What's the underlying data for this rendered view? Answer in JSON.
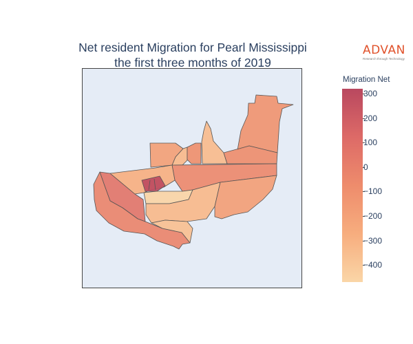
{
  "title": {
    "line1": "Net resident Migration for Pearl Mississippi",
    "line2": "the first three months of 2019"
  },
  "logo": {
    "name": "ADVAN",
    "tagline": "Research through Technology",
    "color": "#e0512a"
  },
  "colorbar": {
    "title": "Migration Net",
    "ticks": [
      "300",
      "200",
      "100",
      "0",
      "−100",
      "−200",
      "−300",
      "−400"
    ],
    "tick_values": [
      300,
      200,
      100,
      0,
      -100,
      -200,
      -300,
      -400
    ],
    "range": [
      -470,
      320
    ],
    "colorscale": [
      "#fad6a7",
      "#f7ad7e",
      "#ee8c6c",
      "#dd6a67",
      "#b9485f"
    ]
  },
  "map": {
    "background": "#e5ecf6",
    "border_color": "#555555",
    "regions": [
      {
        "id": "north-east-strip",
        "value": -120
      },
      {
        "id": "north-center-spike",
        "value": -340
      },
      {
        "id": "center-north-small-a",
        "value": -330
      },
      {
        "id": "center-north-small-b",
        "value": -90
      },
      {
        "id": "north-west-block",
        "value": -190
      },
      {
        "id": "east-middle-block",
        "value": -80
      },
      {
        "id": "center-band",
        "value": -60
      },
      {
        "id": "west-wedge",
        "value": 60
      },
      {
        "id": "west-middle-band",
        "value": -280
      },
      {
        "id": "central-cluster",
        "value": 300
      },
      {
        "id": "central-light-strip",
        "value": -460
      },
      {
        "id": "center-south-block",
        "value": -330
      },
      {
        "id": "south-east-large",
        "value": -180
      },
      {
        "id": "south-west-large",
        "value": -30
      },
      {
        "id": "south-center-small",
        "value": -360
      }
    ]
  }
}
